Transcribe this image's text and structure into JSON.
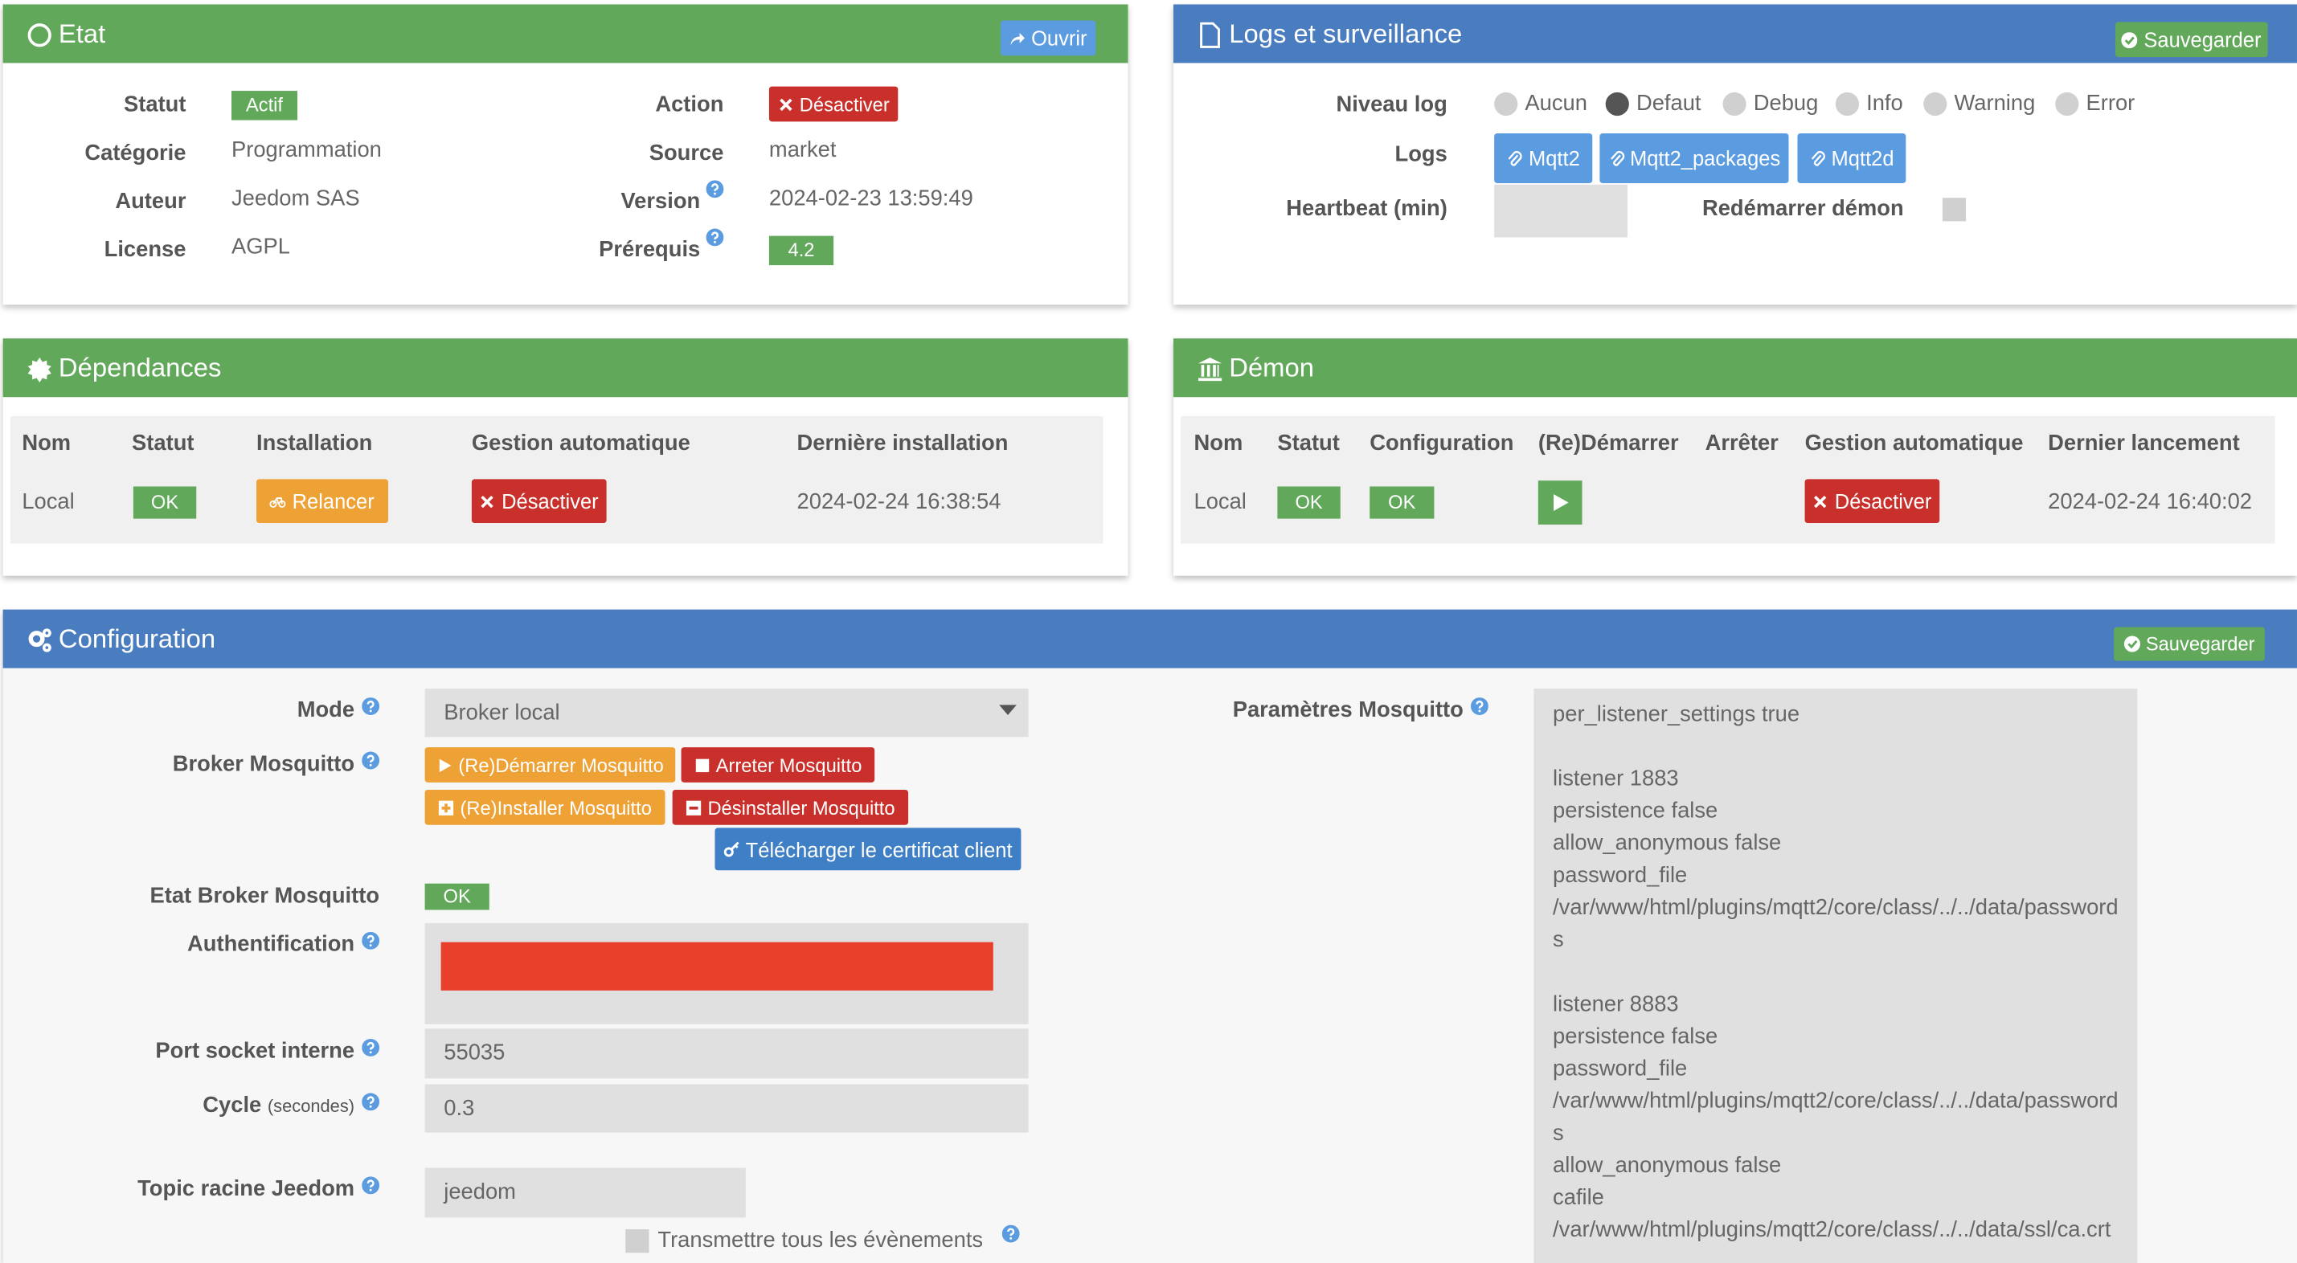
{
  "etat": {
    "title": "Etat",
    "open": "Ouvrir",
    "left": [
      {
        "label": "Statut",
        "value": "Actif"
      },
      {
        "label": "Catégorie",
        "value": "Programmation"
      },
      {
        "label": "Auteur",
        "value": "Jeedom SAS"
      },
      {
        "label": "License",
        "value": "AGPL"
      }
    ],
    "right": [
      {
        "label": "Action",
        "value": "Désactiver"
      },
      {
        "label": "Source",
        "value": "market"
      },
      {
        "label": "Version",
        "value": "2024-02-23 13:59:49"
      },
      {
        "label": "Prérequis",
        "value": "4.2"
      }
    ]
  },
  "logs": {
    "title": "Logs et surveillance",
    "save": "Sauvegarder",
    "level_label": "Niveau log",
    "levels": [
      "Aucun",
      "Defaut",
      "Debug",
      "Info",
      "Warning",
      "Error"
    ],
    "selected_level": "Defaut",
    "logs_label": "Logs",
    "logs": [
      "Mqtt2",
      "Mqtt2_packages",
      "Mqtt2d"
    ],
    "heartbeat_label": "Heartbeat (min)",
    "restart_label": "Redémarrer démon"
  },
  "deps": {
    "title": "Dépendances",
    "headers": [
      "Nom",
      "Statut",
      "Installation",
      "Gestion automatique",
      "Dernière installation"
    ],
    "row": [
      "Local",
      "OK",
      "Relancer",
      "Désactiver",
      "2024-02-24 16:38:54"
    ]
  },
  "demon": {
    "title": "Démon",
    "headers": [
      "Nom",
      "Statut",
      "Configuration",
      "(Re)Démarrer",
      "Arrêter",
      "Gestion automatique",
      "Dernier lancement"
    ],
    "row": [
      "Local",
      "OK",
      "OK",
      "Désactiver",
      "2024-02-24 16:40:02"
    ]
  },
  "config": {
    "title": "Configuration",
    "save": "Sauvegarder",
    "mode_label": "Mode",
    "mode": "Broker local",
    "broker_label": "Broker Mosquitto",
    "buttons": [
      "(Re)Démarrer Mosquitto",
      "Arreter Mosquitto",
      "(Re)Installer Mosquitto",
      "Désinstaller Mosquitto",
      "Télécharger le certificat client"
    ],
    "state_label": "Etat Broker Mosquitto",
    "state": "OK",
    "auth_label": "Authentification",
    "port_label": "Port socket interne",
    "port": "55035",
    "cycle_label": "Cycle",
    "cycle_unit": "(secondes)",
    "cycle": "0.3",
    "topic_label": "Topic racine Jeedom",
    "topic": "jeedom",
    "transmit_label": "Transmettre tous les évènements",
    "params_label": "Paramètres Mosquitto",
    "params": "per_listener_settings true\n\nlistener 1883\npersistence false\nallow_anonymous false\npassword_file\n/var/www/html/plugins/mqtt2/core/class/../../data/passwords\n\nlistener 8883\npersistence false\npassword_file\n/var/www/html/plugins/mqtt2/core/class/../../data/passwords\nallow_anonymous false\ncafile\n/var/www/html/plugins/mqtt2/core/class/../../data/ssl/ca.crt"
  }
}
